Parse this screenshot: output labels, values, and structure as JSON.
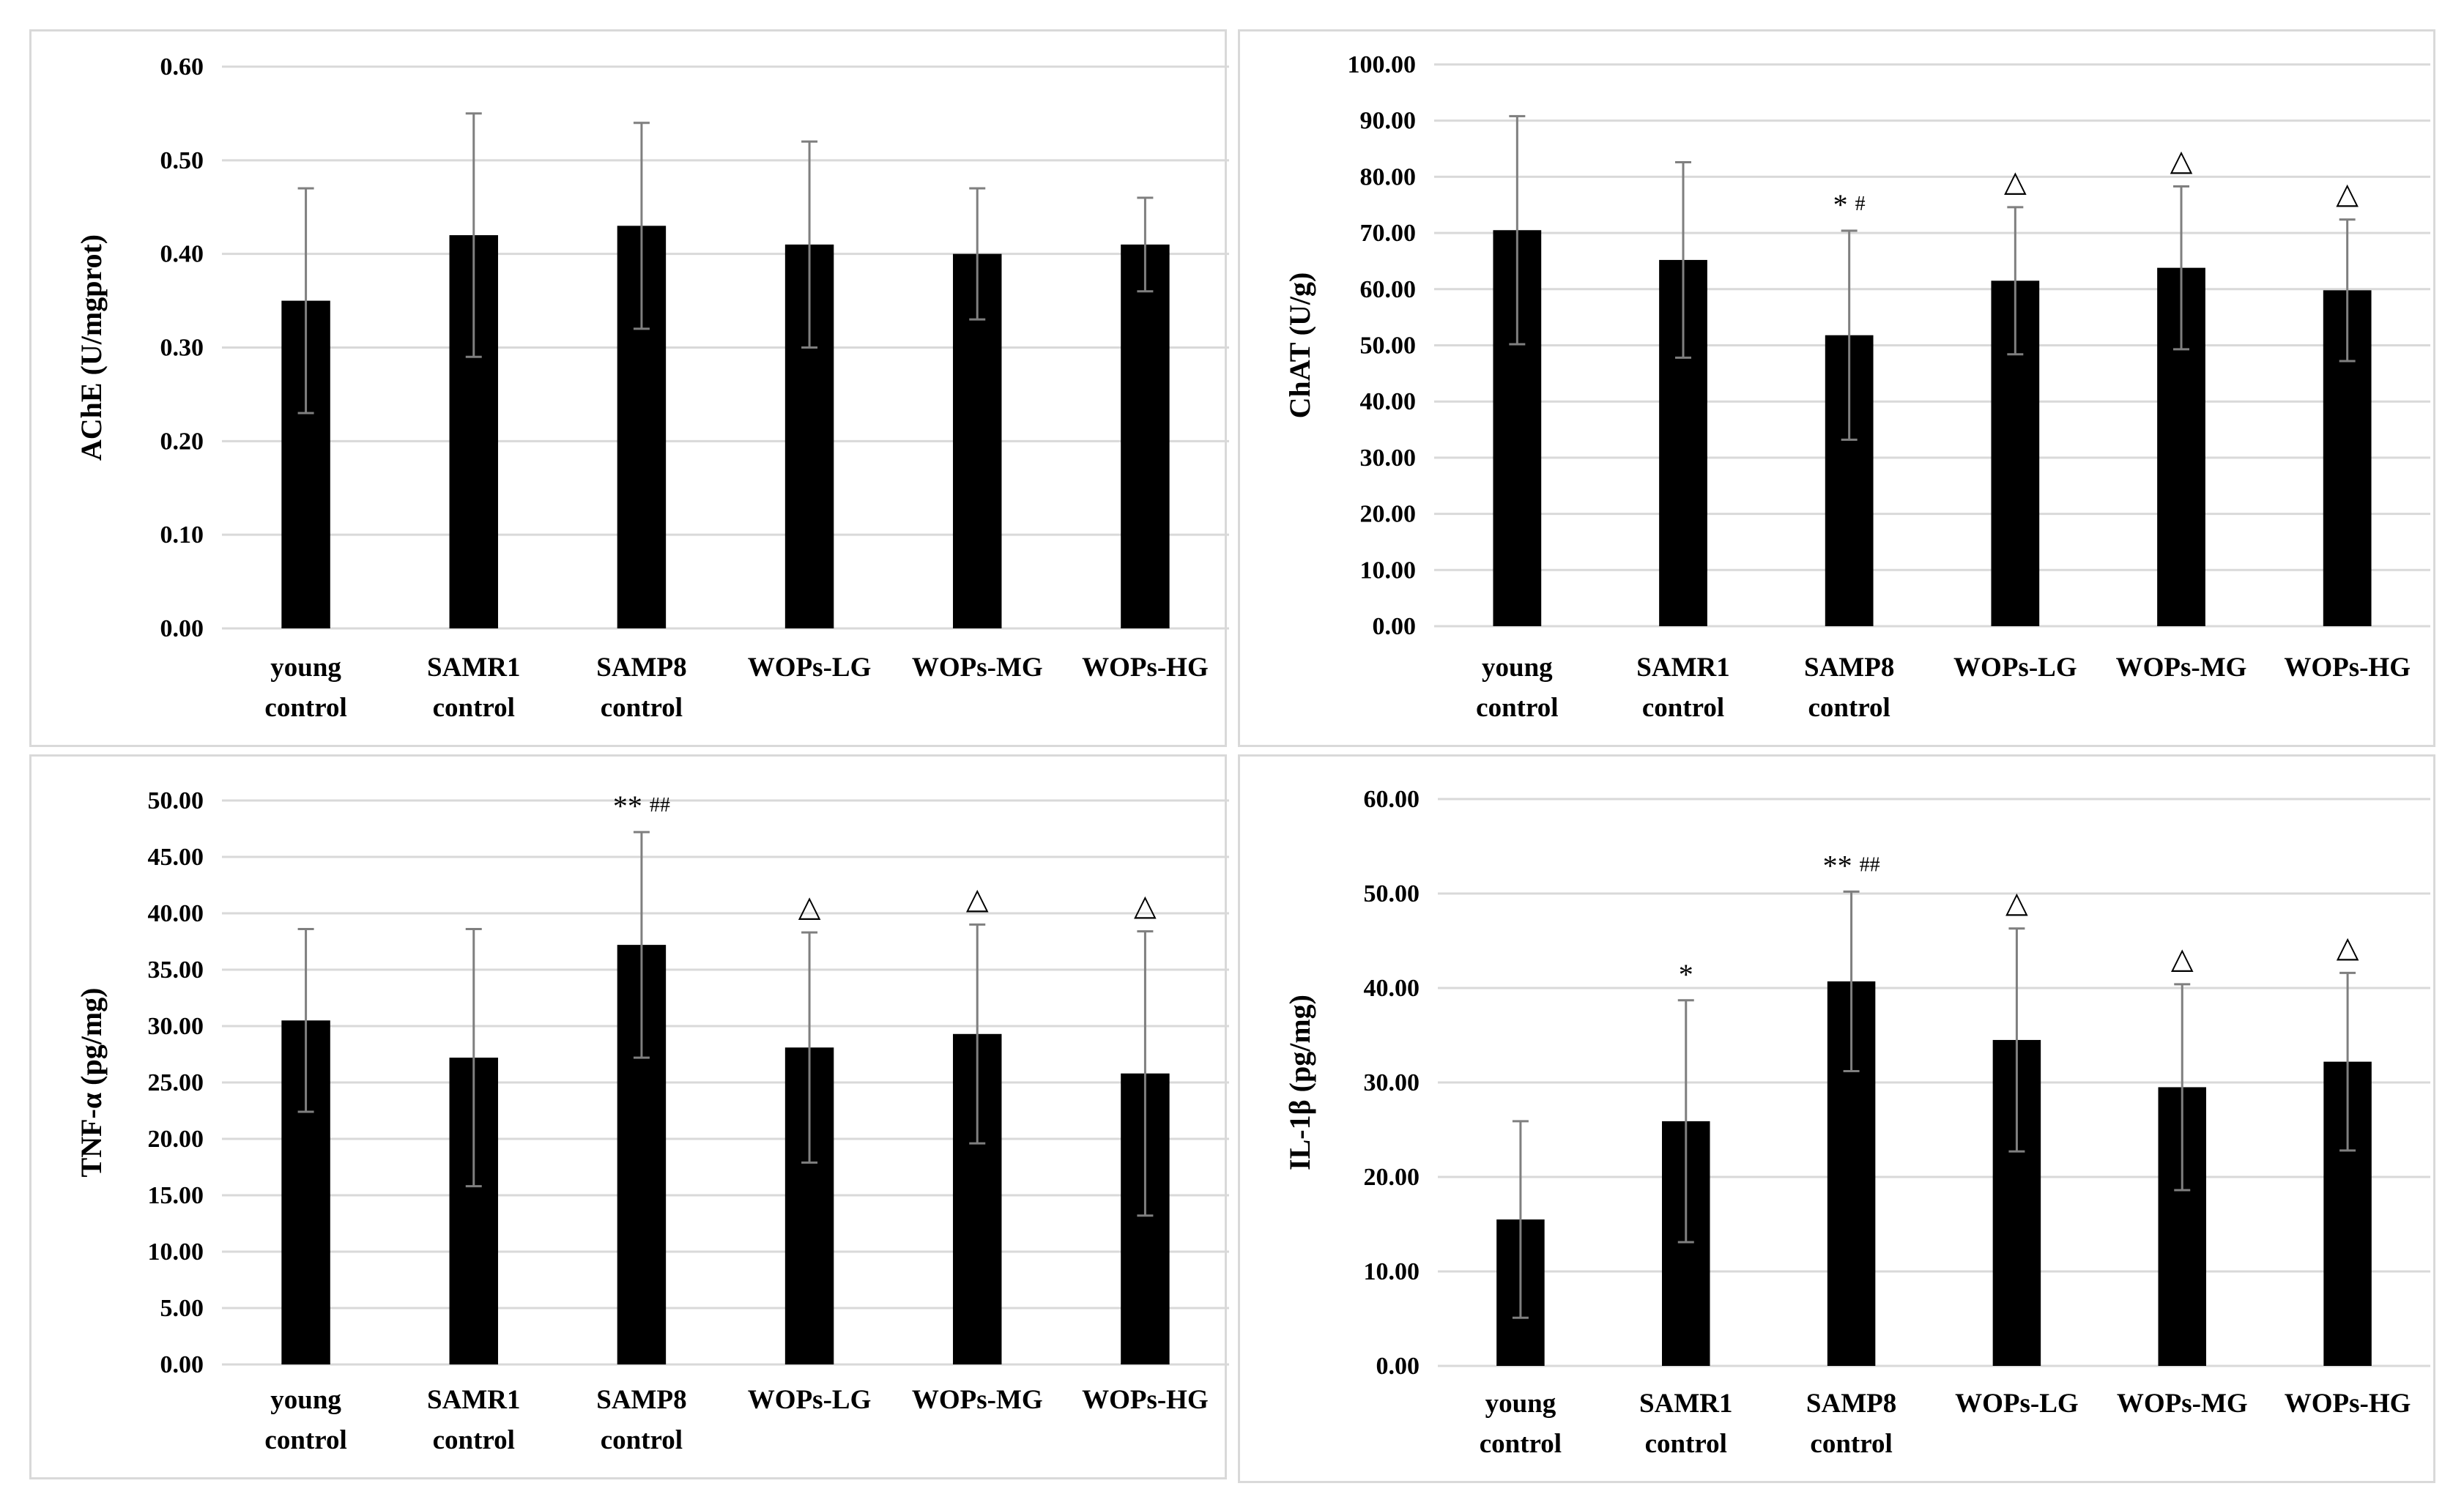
{
  "chart_data": [
    {
      "type": "bar",
      "ylabel": "AChE (U/mgprot)",
      "ylim": [
        0,
        0.6
      ],
      "ystep": 0.1,
      "ydecimals": 2,
      "categories": [
        [
          "young",
          "control"
        ],
        [
          "SAMR1",
          "control"
        ],
        [
          "SAMP8",
          "control"
        ],
        [
          "WOPs-LG"
        ],
        [
          "WOPs-MG"
        ],
        [
          "WOPs-HG"
        ]
      ],
      "values": [
        0.35,
        0.42,
        0.43,
        0.41,
        0.4,
        0.41
      ],
      "error": [
        0.12,
        0.13,
        0.11,
        0.11,
        0.07,
        0.05
      ],
      "annotations": [
        "",
        "",
        "",
        "",
        "",
        ""
      ]
    },
    {
      "type": "bar",
      "ylabel": "ChAT (U/g)",
      "ylim": [
        0,
        100
      ],
      "ystep": 10,
      "ydecimals": 2,
      "categories": [
        [
          "young",
          "control"
        ],
        [
          "SAMR1",
          "control"
        ],
        [
          "SAMP8",
          "control"
        ],
        [
          "WOPs-LG"
        ],
        [
          "WOPs-MG"
        ],
        [
          "WOPs-HG"
        ]
      ],
      "values": [
        70.5,
        65.2,
        51.8,
        61.5,
        63.8,
        59.8
      ],
      "error": [
        20.3,
        17.4,
        18.6,
        13.1,
        14.5,
        12.6
      ],
      "annotations": [
        "",
        "",
        "* #",
        "△",
        "△",
        "△"
      ]
    },
    {
      "type": "bar",
      "ylabel": "TNF-α (pg/mg)",
      "ylim": [
        0,
        50
      ],
      "ystep": 5,
      "ydecimals": 2,
      "categories": [
        [
          "young",
          "control"
        ],
        [
          "SAMR1",
          "control"
        ],
        [
          "SAMP8",
          "control"
        ],
        [
          "WOPs-LG"
        ],
        [
          "WOPs-MG"
        ],
        [
          "WOPs-HG"
        ]
      ],
      "values": [
        30.5,
        27.2,
        37.2,
        28.1,
        29.3,
        25.8
      ],
      "error": [
        8.1,
        11.4,
        10.0,
        10.2,
        9.7,
        12.6
      ],
      "annotations": [
        "",
        "",
        "** ##",
        "△",
        "△",
        "△"
      ]
    },
    {
      "type": "bar",
      "ylabel": "IL-1β (pg/mg)",
      "ylim": [
        0,
        60
      ],
      "ystep": 10,
      "ydecimals": 2,
      "categories": [
        [
          "young",
          "control"
        ],
        [
          "SAMR1",
          "control"
        ],
        [
          "SAMP8",
          "control"
        ],
        [
          "WOPs-LG"
        ],
        [
          "WOPs-MG"
        ],
        [
          "WOPs-HG"
        ]
      ],
      "values": [
        15.5,
        25.9,
        40.7,
        34.5,
        29.5,
        32.2
      ],
      "error": [
        10.4,
        12.8,
        9.5,
        11.8,
        10.9,
        9.4
      ],
      "annotations": [
        "",
        "*",
        "** ##",
        "△",
        "△",
        "△"
      ]
    }
  ]
}
